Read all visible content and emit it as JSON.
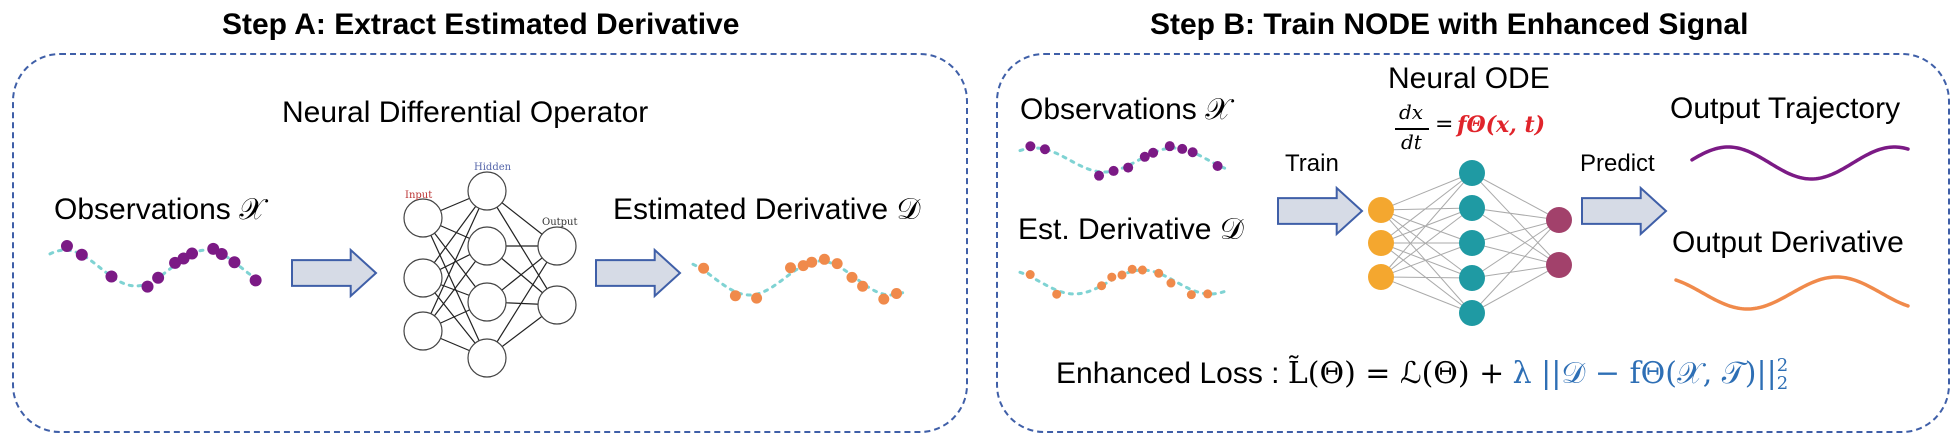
{
  "step_a": {
    "title": "Step A: Extract Estimated Derivative",
    "operator_label": "Neural Differential Operator",
    "observations_label": "Observations",
    "observations_symbol": "𝒳",
    "derivative_label": "Estimated Derivative",
    "derivative_symbol": "𝒟",
    "nn_labels": {
      "input": "Input",
      "hidden": "Hidden",
      "output": "Output"
    }
  },
  "step_b": {
    "title": "Step B: Train NODE with Enhanced Signal",
    "observations_label": "Observations",
    "observations_symbol": "𝒳",
    "derivative_label": "Est. Derivative",
    "derivative_symbol": "𝒟",
    "node_title": "Neural ODE",
    "ode_numerator": "dx",
    "ode_denominator": "dt",
    "ode_equals": "=",
    "ode_rhs": "fΘ(x, t)",
    "train_label": "Train",
    "predict_label": "Predict",
    "output_trajectory_label": "Output Trajectory",
    "output_derivative_label": "Output Derivative",
    "loss_prefix": "Enhanced Loss :",
    "loss_main": "L̃(Θ) = ℒ(Θ) +",
    "loss_reg": "λ ||𝒟 − fΘ(𝒳, 𝒯)||",
    "loss_sup": "2",
    "loss_sub": "2"
  },
  "colors": {
    "purple": "#7b1a85",
    "orange": "#f08a4b",
    "teal": "#1f9aa3",
    "amber": "#f4a72f",
    "magenta": "#a2416b",
    "dotted": "#7fd3d3",
    "blue": "#2e6fb5",
    "red": "#e0242b",
    "panel_border": "#3f5fa8",
    "arrow_fill": "#d6dbe6",
    "arrow_stroke": "#3f5fa8"
  }
}
